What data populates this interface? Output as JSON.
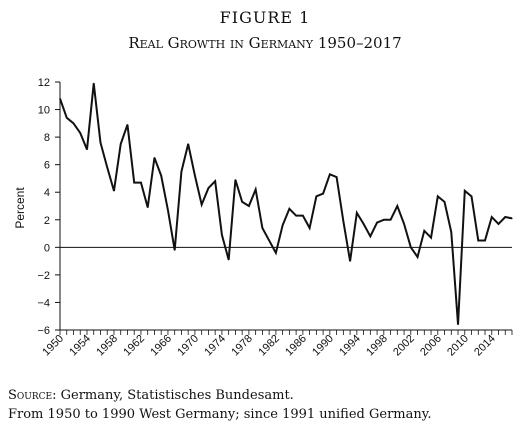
{
  "figure": {
    "label": "FIGURE 1",
    "title": "Real Growth in Germany 1950–2017"
  },
  "source": {
    "label": "Source",
    "text": ": Germany, Statistisches Bundesamt.",
    "note": "From 1950 to 1990 West Germany; since 1991 unified Germany."
  },
  "chart_data": {
    "type": "line",
    "ylabel": "Percent",
    "xlabel": "",
    "ylim": [
      -6,
      12
    ],
    "yticks": [
      -6,
      -4,
      -2,
      0,
      2,
      4,
      6,
      8,
      10,
      12
    ],
    "xlim": [
      1950,
      2017
    ],
    "xtick_labels": [
      "1950",
      "1954",
      "1958",
      "1962",
      "1966",
      "1970",
      "1974",
      "1978",
      "1982",
      "1986",
      "1990",
      "1994",
      "1998",
      "2002",
      "2006",
      "2010",
      "2014"
    ],
    "zero_line": true,
    "grid": false,
    "series": [
      {
        "x": [
          1950,
          1951,
          1952,
          1953,
          1954,
          1955,
          1956,
          1957,
          1958,
          1959,
          1960,
          1961,
          1962,
          1963,
          1964,
          1965,
          1966,
          1967,
          1968,
          1969,
          1970,
          1971,
          1972,
          1973,
          1974,
          1975,
          1976,
          1977,
          1978,
          1979,
          1980,
          1981,
          1982,
          1983,
          1984,
          1985,
          1986,
          1987,
          1988,
          1989,
          1990,
          1991,
          1992,
          1993,
          1994,
          1995,
          1996,
          1997,
          1998,
          1999,
          2000,
          2001,
          2002,
          2003,
          2004,
          2005,
          2006,
          2007,
          2008,
          2009,
          2010,
          2011,
          2012,
          2013,
          2014,
          2015,
          2016,
          2017
        ],
        "values": [
          10.8,
          9.4,
          9.0,
          8.3,
          7.1,
          11.9,
          7.6,
          5.8,
          4.1,
          7.5,
          8.9,
          4.7,
          4.7,
          2.9,
          6.5,
          5.2,
          2.7,
          -0.2,
          5.5,
          7.5,
          5.2,
          3.1,
          4.3,
          4.8,
          0.9,
          -0.9,
          4.9,
          3.3,
          3.0,
          4.2,
          1.4,
          0.5,
          -0.4,
          1.6,
          2.8,
          2.3,
          2.3,
          1.4,
          3.7,
          3.9,
          5.3,
          5.1,
          1.9,
          -1.0,
          2.5,
          1.7,
          0.8,
          1.8,
          2.0,
          2.0,
          3.0,
          1.7,
          0.0,
          -0.7,
          1.2,
          0.7,
          3.7,
          3.3,
          1.1,
          -5.6,
          4.1,
          3.7,
          0.5,
          0.5,
          2.2,
          1.7,
          2.2,
          2.1
        ]
      }
    ]
  }
}
